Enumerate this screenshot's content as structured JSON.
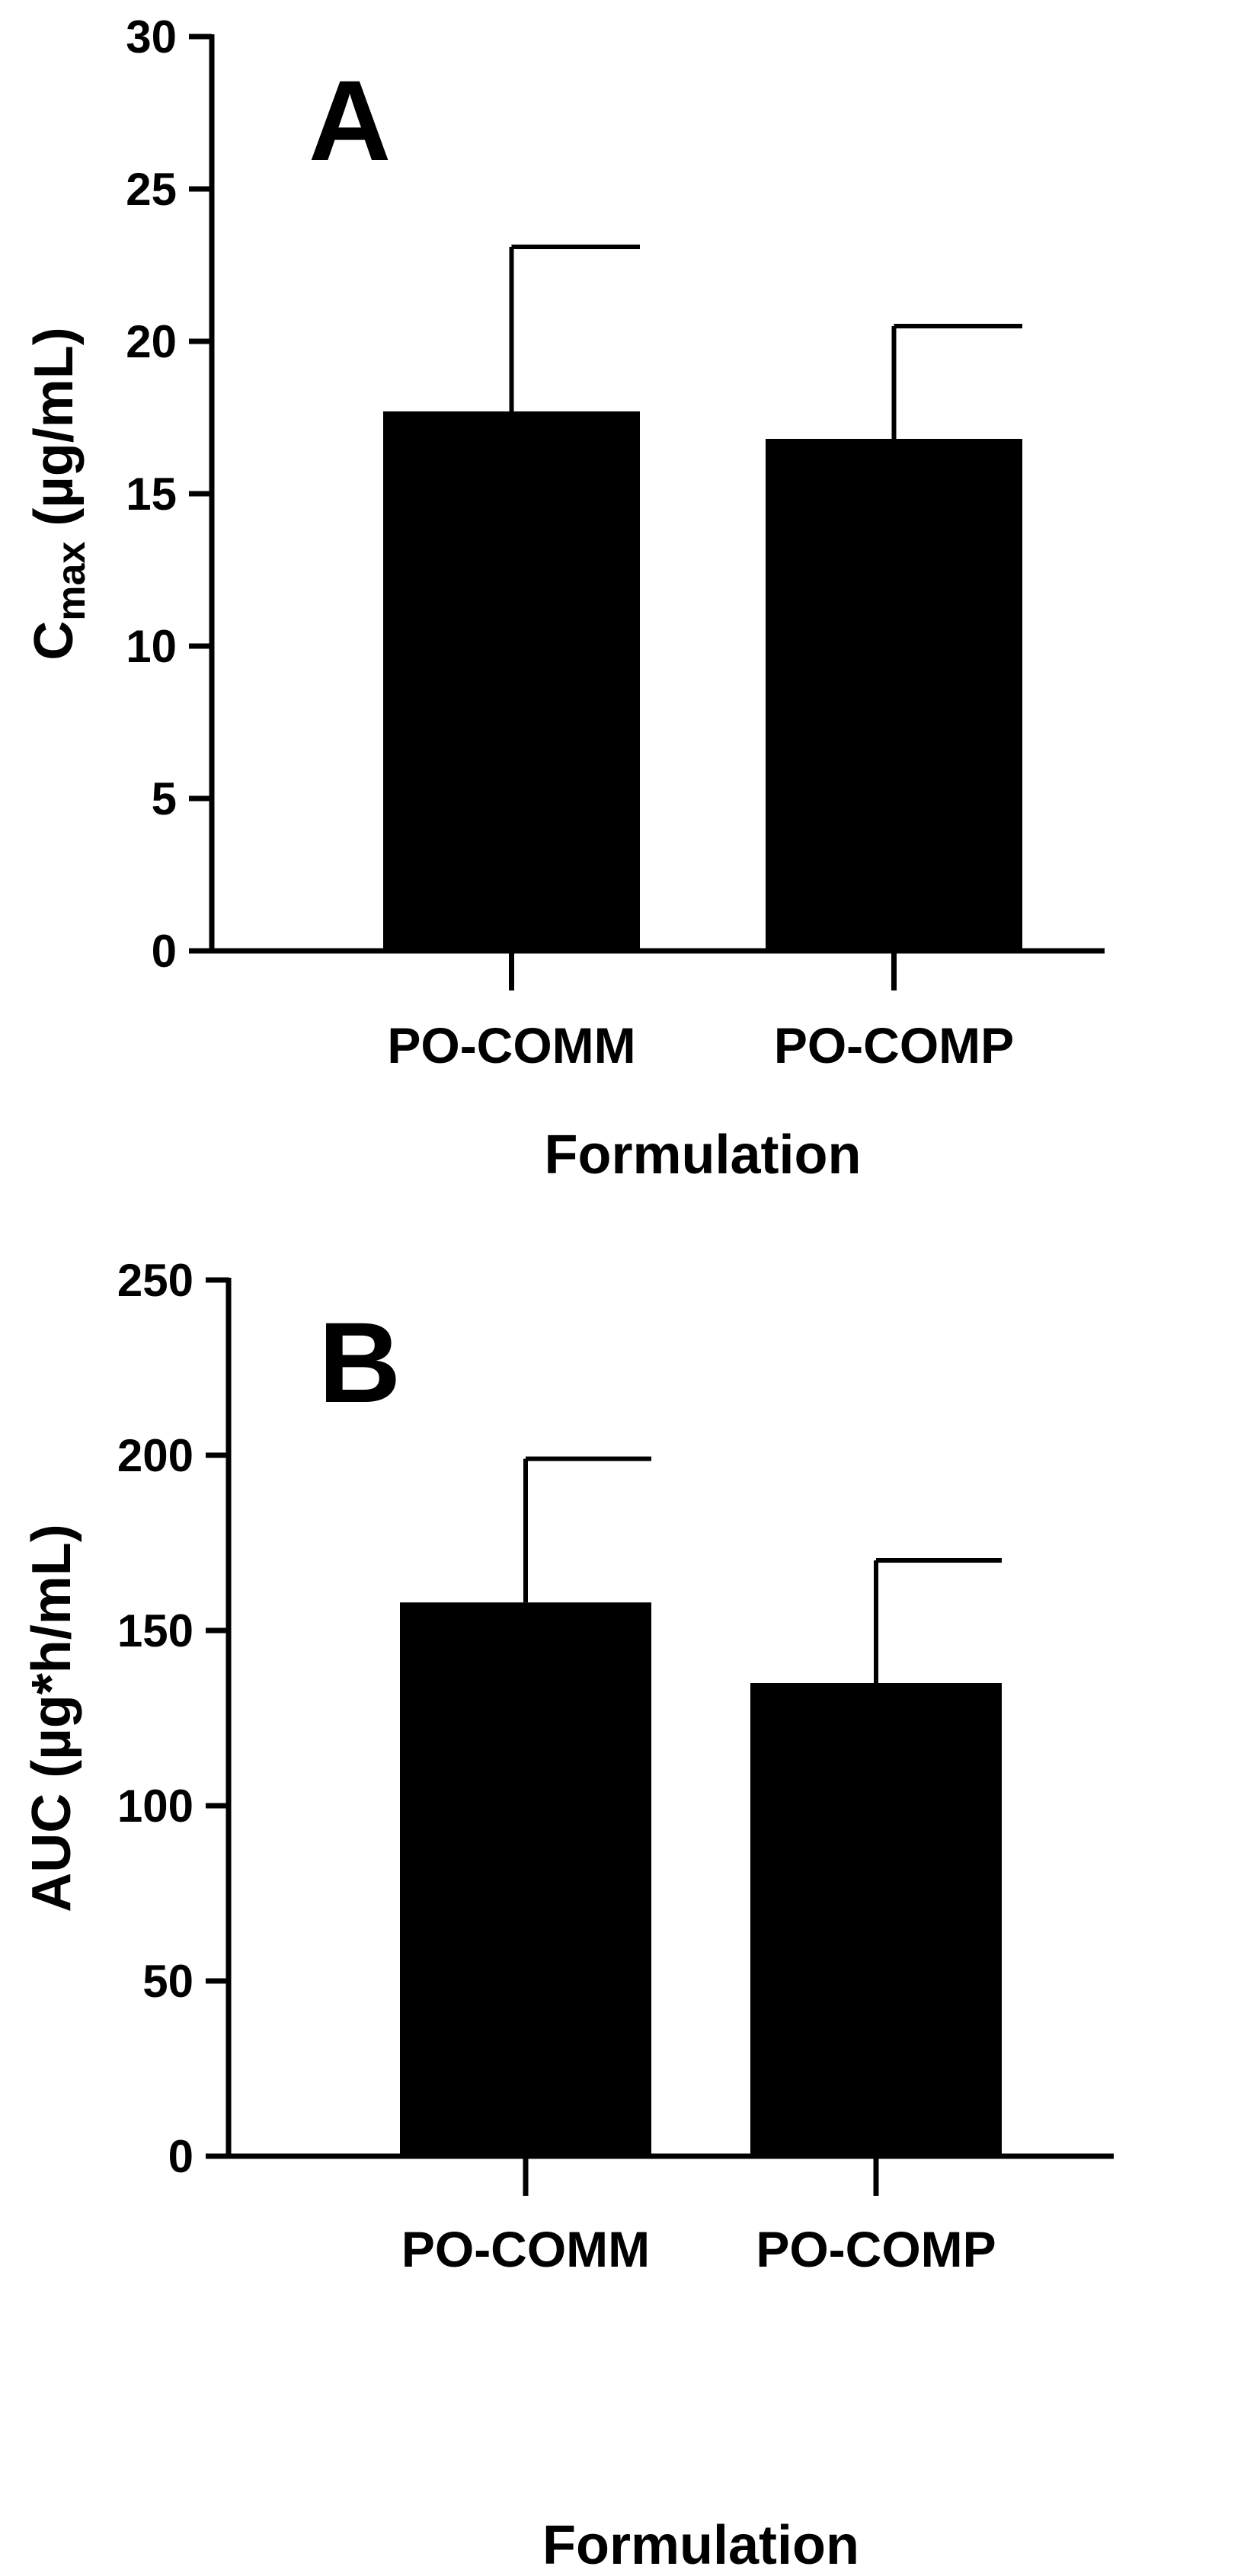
{
  "chart_data": [
    {
      "type": "bar",
      "panel_label": "A",
      "categories": [
        "PO-COMM",
        "PO-COMP"
      ],
      "values": [
        17.7,
        16.8
      ],
      "error_upper": [
        23.1,
        20.5
      ],
      "ylim": [
        0,
        30
      ],
      "yticks": [
        0,
        5,
        10,
        15,
        20,
        25,
        30
      ],
      "ylabel_main": "C",
      "ylabel_sub": "max",
      "ylabel_rest": " (µg/mL)",
      "xlabel": "Formulation",
      "bar_color": "#000000"
    },
    {
      "type": "bar",
      "panel_label": "B",
      "categories": [
        "PO-COMM",
        "PO-COMP"
      ],
      "values": [
        158,
        135
      ],
      "error_upper": [
        199,
        170
      ],
      "ylim": [
        0,
        250
      ],
      "yticks": [
        0,
        50,
        100,
        150,
        200,
        250
      ],
      "ylabel_main": "AUC (µg*h/mL)",
      "ylabel_sub": "",
      "ylabel_rest": "",
      "xlabel": "Formulation",
      "bar_color": "#000000"
    }
  ]
}
